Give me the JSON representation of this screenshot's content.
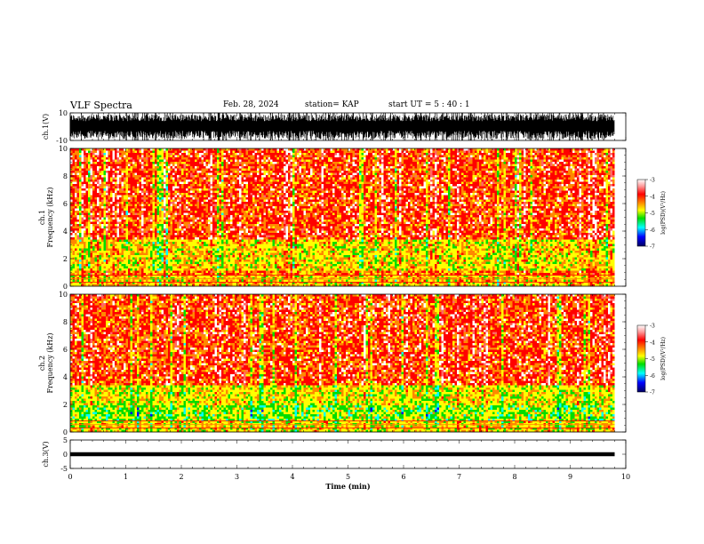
{
  "header": {
    "title": "VLF Spectra",
    "date": "Feb. 28, 2024",
    "station": "station= KAP",
    "start": "start  UT  =   5  : 40 : 1"
  },
  "chart_data": [
    {
      "type": "line",
      "id": "ch1-waveform",
      "ylabel": "ch.1(V)",
      "ylim": [
        -10,
        10
      ],
      "y_ticks": [
        "10",
        "-10"
      ],
      "xlim": [
        0,
        10
      ],
      "data_end_min": 9.8,
      "envelope": "dense oscillation filling most of -10..10 V with frequent full-scale spikes"
    },
    {
      "type": "heatmap",
      "id": "ch1-spectrogram",
      "ylabel": "ch.1\nFrequency  (kHz)",
      "ylim": [
        0,
        10
      ],
      "y_ticks": [
        "0",
        "2",
        "4",
        "6",
        "8",
        "10"
      ],
      "xlim": [
        0,
        10
      ],
      "data_end_min": 9.8,
      "colorbar": {
        "label": "log(PSD)(V²/Hz)",
        "range": [
          -7,
          -3
        ],
        "ticks": [
          "-3",
          "-4",
          "-5",
          "-6",
          "-7"
        ]
      },
      "bands": [
        {
          "from_khz": 0,
          "to_khz": 0.8,
          "level": -4.2
        },
        {
          "from_khz": 0.8,
          "to_khz": 1.2,
          "level": -3.9
        },
        {
          "from_khz": 1.2,
          "to_khz": 3.4,
          "level": -4.3
        },
        {
          "from_khz": 3.4,
          "to_khz": 10,
          "level": -3.6
        }
      ]
    },
    {
      "type": "heatmap",
      "id": "ch2-spectrogram",
      "ylabel": "ch.2\nFrequency  (kHz)",
      "ylim": [
        0,
        10
      ],
      "y_ticks": [
        "0",
        "2",
        "4",
        "6",
        "8",
        "10"
      ],
      "xlim": [
        0,
        10
      ],
      "data_end_min": 9.8,
      "colorbar": {
        "label": "log(PSD)(V²/Hz)",
        "range": [
          -7,
          -3
        ],
        "ticks": [
          "-3",
          "-4",
          "-5",
          "-6",
          "-7"
        ]
      },
      "bands": [
        {
          "from_khz": 0,
          "to_khz": 0.8,
          "level": -4.3
        },
        {
          "from_khz": 0.8,
          "to_khz": 2.0,
          "level": -4.7
        },
        {
          "from_khz": 2.0,
          "to_khz": 3.4,
          "level": -4.4
        },
        {
          "from_khz": 3.4,
          "to_khz": 10,
          "level": -3.6
        }
      ]
    },
    {
      "type": "line",
      "id": "ch3-waveform",
      "ylabel": "ch.3(V)",
      "ylim": [
        -5,
        5
      ],
      "y_ticks": [
        "5",
        "0",
        "-5"
      ],
      "xlim": [
        0,
        10
      ],
      "data_end_min": 9.8,
      "band_center_v": 0,
      "band_halfwidth_v": 0.7,
      "xlabel": "Time  (min)",
      "x_ticks": [
        "0",
        "1",
        "2",
        "3",
        "4",
        "5",
        "6",
        "7",
        "8",
        "9",
        "10"
      ]
    }
  ],
  "colors": {
    "axis": "#000000",
    "colormap": [
      "#ffffff",
      "#ff0000",
      "#ff7f00",
      "#ffff00",
      "#00cc00",
      "#00ffff",
      "#0000ff",
      "#00007f"
    ]
  }
}
